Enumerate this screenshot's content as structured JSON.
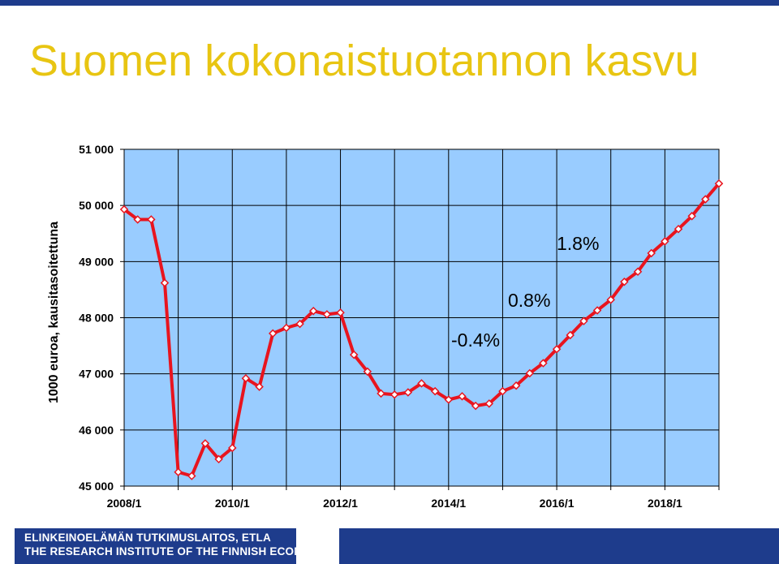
{
  "title": "Suomen kokonaistuotannon kasvu",
  "footer": {
    "line1": "ELINKEINOELÄMÄN TUTKIMUSLAITOS, ETLA",
    "line2": "THE RESEARCH INSTITUTE OF THE FINNISH ECONOMY"
  },
  "colors": {
    "title": "#e8c512",
    "plot_background": "#99ccff",
    "line": "#e8141e",
    "marker_fill": "#ffffff",
    "brand_blue": "#1e3c8c"
  },
  "chart_data": {
    "type": "line",
    "ylabel": "1000 euroa, kausitasoitettuna",
    "xlabel": "",
    "ylim": [
      45000,
      51000
    ],
    "y_ticks": [
      "45 000",
      "46 000",
      "47 000",
      "48 000",
      "49 000",
      "50 000",
      "51 000"
    ],
    "x_tick_labels": [
      "2008/1",
      "2010/1",
      "2012/1",
      "2014/1",
      "2016/1",
      "2018/1"
    ],
    "grid": true,
    "x": [
      "2008/1",
      "2008/2",
      "2008/3",
      "2008/4",
      "2009/1",
      "2009/2",
      "2009/3",
      "2009/4",
      "2010/1",
      "2010/2",
      "2010/3",
      "2010/4",
      "2011/1",
      "2011/2",
      "2011/3",
      "2011/4",
      "2012/1",
      "2012/2",
      "2012/3",
      "2012/4",
      "2013/1",
      "2013/2",
      "2013/3",
      "2013/4",
      "2014/1",
      "2014/2",
      "2014/3",
      "2014/4",
      "2015/1",
      "2015/2",
      "2015/3",
      "2015/4",
      "2016/1",
      "2016/2",
      "2016/3",
      "2016/4",
      "2017/1",
      "2017/2",
      "2017/3",
      "2017/4",
      "2018/1",
      "2018/2",
      "2018/3",
      "2018/4",
      "2019/1"
    ],
    "series": [
      {
        "values": [
          49930,
          49750,
          49750,
          48620,
          45250,
          45180,
          45760,
          45480,
          45680,
          46920,
          46770,
          47720,
          47820,
          47890,
          48120,
          48060,
          48090,
          47340,
          47040,
          46650,
          46630,
          46670,
          46830,
          46690,
          46540,
          46600,
          46430,
          46470,
          46690,
          46790,
          47010,
          47190,
          47440,
          47690,
          47940,
          48130,
          48320,
          48640,
          48820,
          49150,
          49360,
          49580,
          49810,
          50110,
          50390
        ]
      }
    ],
    "annotations": [
      {
        "text": "-0.4%"
      },
      {
        "text": "0.8%"
      },
      {
        "text": "1.8%"
      }
    ]
  }
}
